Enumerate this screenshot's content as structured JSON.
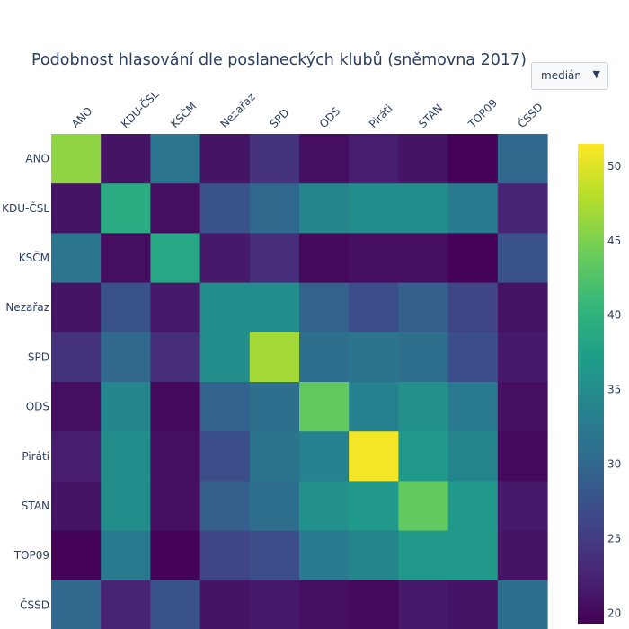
{
  "title": "Podobnost hlasování dle poslaneckých klubů (sněmovna 2017)",
  "dropdown": {
    "selected": "medián"
  },
  "chart_data": {
    "type": "heatmap",
    "x": [
      "ANO",
      "KDU-ČSL",
      "KSČM",
      "Nezařaz",
      "SPD",
      "ODS",
      "Piráti",
      "STAN",
      "TOP09",
      "ČSSD"
    ],
    "y": [
      "ANO",
      "KDU-ČSL",
      "KSČM",
      "Nezařaz",
      "SPD",
      "ODS",
      "Piráti",
      "STAN",
      "TOP09",
      "ČSSD"
    ],
    "z": [
      [
        46,
        21,
        32,
        21,
        24,
        20.5,
        22,
        21,
        19.5,
        30
      ],
      [
        21,
        39,
        20.5,
        27.5,
        30,
        34,
        35,
        35,
        32.5,
        22.5
      ],
      [
        32,
        20.5,
        38.5,
        21.5,
        23.5,
        20,
        20.5,
        20.5,
        19.5,
        27.5
      ],
      [
        21,
        27.5,
        21.5,
        35,
        35,
        29.5,
        27,
        29,
        26,
        21
      ],
      [
        24,
        30,
        23.5,
        35,
        47,
        31,
        31.5,
        31,
        27,
        21.5
      ],
      [
        20.5,
        34,
        20,
        29.5,
        31,
        43.5,
        33.5,
        35.5,
        32.5,
        20.5
      ],
      [
        22,
        35,
        20.5,
        27,
        31.5,
        33.5,
        51,
        36.5,
        34,
        20
      ],
      [
        21,
        35,
        20.5,
        29,
        31,
        35.5,
        36.5,
        43.5,
        36.5,
        21.5
      ],
      [
        19.5,
        32.5,
        19.5,
        26,
        27,
        32.5,
        34,
        36.5,
        36.5,
        21
      ],
      [
        30,
        22.5,
        27.5,
        21,
        21.5,
        20.5,
        20,
        21.5,
        21,
        31
      ]
    ],
    "zmin": 19.3,
    "zmax": 51.5,
    "colorscale": "Viridis",
    "colorbar_ticks": [
      20,
      25,
      30,
      35,
      40,
      45,
      50
    ],
    "colorbar_tick_labels": [
      "20",
      "25",
      "30",
      "35",
      "40",
      "45",
      "50"
    ],
    "xlabel": "",
    "ylabel": ""
  }
}
